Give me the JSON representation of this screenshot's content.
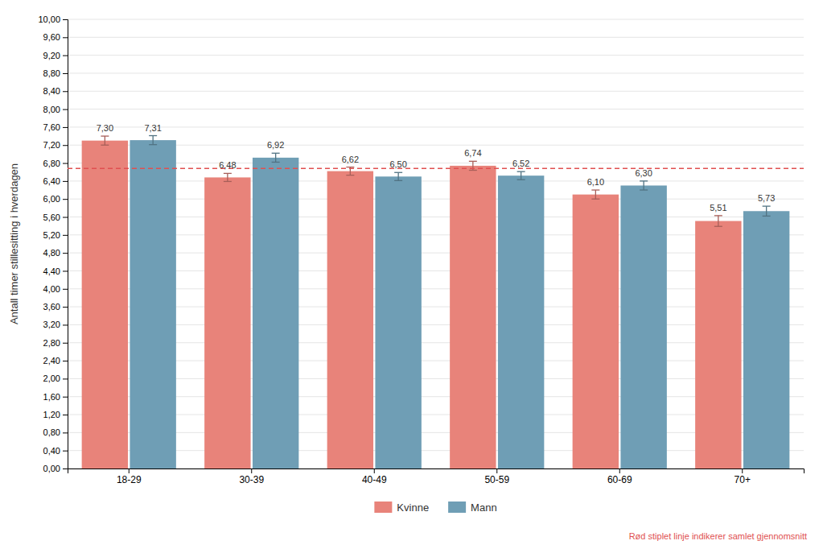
{
  "chart_data": {
    "type": "bar",
    "y_label": "Antall timer stillesitting i hverdagen",
    "categories": [
      "18-29",
      "30-39",
      "40-49",
      "50-59",
      "60-69",
      "70+"
    ],
    "series": [
      {
        "name": "Kvinne",
        "color": "#E8837A",
        "values": [
          7.3,
          6.48,
          6.62,
          6.74,
          6.1,
          5.51
        ],
        "value_labels": [
          "7,30",
          "6,48",
          "6,62",
          "6,74",
          "6,10",
          "5,51"
        ],
        "errors": [
          0.1,
          0.09,
          0.09,
          0.1,
          0.1,
          0.12
        ]
      },
      {
        "name": "Mann",
        "color": "#6F9EB5",
        "values": [
          7.31,
          6.92,
          6.5,
          6.52,
          6.3,
          5.73
        ],
        "value_labels": [
          "7,31",
          "6,92",
          "6,50",
          "6,52",
          "6,30",
          "5,73"
        ],
        "errors": [
          0.1,
          0.1,
          0.09,
          0.09,
          0.1,
          0.11
        ]
      }
    ],
    "reference_line": {
      "value": 6.68,
      "color": "#E05050",
      "line_style": "dashed"
    },
    "annotations": [
      {
        "text": "Rød stiplet linje indikerer samlet gjennomsnitt",
        "color": "#E05050"
      }
    ],
    "ylim": [
      0,
      10.0
    ],
    "yticks": [
      {
        "value": 0,
        "label": "0,00"
      },
      {
        "value": 0.4,
        "label": "0,40"
      },
      {
        "value": 0.8,
        "label": "0,80"
      },
      {
        "value": 1.2,
        "label": "1,20"
      },
      {
        "value": 1.6,
        "label": "1,60"
      },
      {
        "value": 2.0,
        "label": "2,00"
      },
      {
        "value": 2.4,
        "label": "2,40"
      },
      {
        "value": 2.8,
        "label": "2,80"
      },
      {
        "value": 3.2,
        "label": "3,20"
      },
      {
        "value": 3.6,
        "label": "3,60"
      },
      {
        "value": 4.0,
        "label": "4,00"
      },
      {
        "value": 4.4,
        "label": "4,40"
      },
      {
        "value": 4.8,
        "label": "4,80"
      },
      {
        "value": 5.2,
        "label": "5,20"
      },
      {
        "value": 5.6,
        "label": "5,60"
      },
      {
        "value": 6.0,
        "label": "6,00"
      },
      {
        "value": 6.4,
        "label": "6,40"
      },
      {
        "value": 6.8,
        "label": "6,80"
      },
      {
        "value": 7.2,
        "label": "7,20"
      },
      {
        "value": 7.6,
        "label": "7,60"
      },
      {
        "value": 8.0,
        "label": "8,00"
      },
      {
        "value": 8.4,
        "label": "8,40"
      },
      {
        "value": 8.8,
        "label": "8,80"
      },
      {
        "value": 9.2,
        "label": "9,20"
      },
      {
        "value": 9.6,
        "label": "9,60"
      },
      {
        "value": 10.0,
        "label": "10,00"
      }
    ],
    "grid": true,
    "data_labels": true,
    "legend": "bottom"
  }
}
